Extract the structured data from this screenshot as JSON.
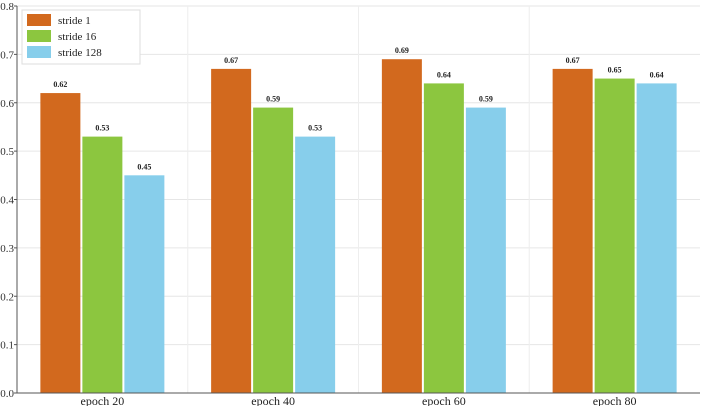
{
  "chart_data": {
    "type": "bar",
    "categories": [
      "epoch 20",
      "epoch 40",
      "epoch 60",
      "epoch 80"
    ],
    "series": [
      {
        "name": "stride 1",
        "values": [
          0.62,
          0.67,
          0.69,
          0.67
        ],
        "color": "#D2691E"
      },
      {
        "name": "stride 16",
        "values": [
          0.53,
          0.59,
          0.64,
          0.65
        ],
        "color": "#8CC63F"
      },
      {
        "name": "stride 128",
        "values": [
          0.45,
          0.53,
          0.59,
          0.64
        ],
        "color": "#87CEEB"
      }
    ],
    "data_labels": [
      [
        "0.62",
        "0.67",
        "0.69",
        "0.67"
      ],
      [
        "0.53",
        "0.59",
        "0.64",
        "0.65"
      ],
      [
        "0.45",
        "0.53",
        "0.59",
        "0.64"
      ]
    ],
    "yticks": [
      "0.0",
      "0.1",
      "0.2",
      "0.3",
      "0.4",
      "0.5",
      "0.6",
      "0.7",
      "0.8"
    ],
    "ylim": [
      0,
      0.8
    ],
    "grid": true,
    "legend_position": "top-left",
    "title": "",
    "xlabel": "",
    "ylabel": ""
  }
}
